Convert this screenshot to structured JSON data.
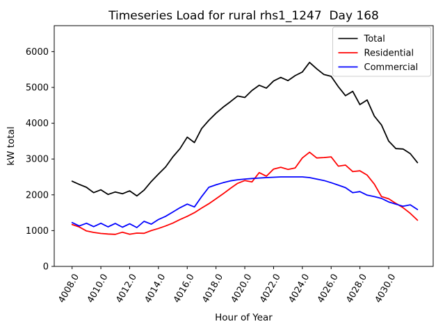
{
  "title": "Timeseries Load for rural rhs1_1247  Day 168",
  "chart_data": {
    "type": "line",
    "title": "Timeseries Load for rural rhs1_1247  Day 168",
    "xlabel": "Hour of Year",
    "ylabel": "kW total",
    "xlim": [
      4006.76,
      4033.09
    ],
    "ylim": [
      0,
      6725
    ],
    "grid": false,
    "xticks": [
      4008,
      4010,
      4012,
      4014,
      4016,
      4018,
      4020,
      4022,
      4024,
      4026,
      4028,
      4030
    ],
    "xtick_labels": [
      "4008.0",
      "4010.0",
      "4012.0",
      "4014.0",
      "4016.0",
      "4018.0",
      "4020.0",
      "4022.0",
      "4024.0",
      "4026.0",
      "4028.0",
      "4030.0"
    ],
    "yticks": [
      0,
      1000,
      2000,
      3000,
      4000,
      5000,
      6000
    ],
    "ytick_labels": [
      "0",
      "1000",
      "2000",
      "3000",
      "4000",
      "5000",
      "6000"
    ],
    "legend": {
      "position": "upper right",
      "entries": [
        {
          "label": "Total",
          "color": "#000000"
        },
        {
          "label": "Residential",
          "color": "#ff0000"
        },
        {
          "label": "Commercial",
          "color": "#0000ff"
        }
      ]
    },
    "x": [
      4008.0,
      4008.5,
      4009.0,
      4009.5,
      4010.0,
      4010.5,
      4011.0,
      4011.5,
      4012.0,
      4012.5,
      4013.0,
      4013.5,
      4014.0,
      4014.5,
      4015.0,
      4015.5,
      4016.0,
      4016.5,
      4017.0,
      4017.5,
      4018.0,
      4018.5,
      4019.0,
      4019.5,
      4020.0,
      4020.5,
      4021.0,
      4021.5,
      4022.0,
      4022.5,
      4023.0,
      4023.5,
      4024.0,
      4024.5,
      4025.0,
      4025.5,
      4026.0,
      4026.5,
      4027.0,
      4027.5,
      4028.0,
      4028.5,
      4029.0,
      4029.5,
      4030.0,
      4030.5,
      4031.0,
      4031.5,
      4032.0
    ],
    "series": [
      {
        "name": "Total",
        "color": "#000000",
        "values": [
          2380,
          2290,
          2210,
          2060,
          2140,
          2010,
          2080,
          2030,
          2110,
          1970,
          2130,
          2370,
          2580,
          2780,
          3060,
          3290,
          3610,
          3460,
          3850,
          4080,
          4280,
          4450,
          4600,
          4760,
          4720,
          4915,
          5060,
          4980,
          5180,
          5280,
          5190,
          5330,
          5430,
          5700,
          5520,
          5360,
          5310,
          5020,
          4770,
          4890,
          4520,
          4650,
          4200,
          3950,
          3500,
          3290,
          3280,
          3150,
          2900
        ]
      },
      {
        "name": "Residential",
        "color": "#ff0000",
        "values": [
          1170,
          1100,
          990,
          950,
          920,
          905,
          895,
          955,
          900,
          930,
          925,
          1000,
          1060,
          1130,
          1210,
          1310,
          1400,
          1500,
          1630,
          1750,
          1890,
          2030,
          2180,
          2320,
          2400,
          2360,
          2620,
          2520,
          2720,
          2770,
          2710,
          2750,
          3030,
          3190,
          3030,
          3040,
          3060,
          2800,
          2830,
          2650,
          2670,
          2550,
          2300,
          1950,
          1890,
          1760,
          1640,
          1480,
          1290
        ]
      },
      {
        "name": "Commercial",
        "color": "#0000ff",
        "values": [
          1225,
          1130,
          1205,
          1110,
          1205,
          1105,
          1200,
          1095,
          1190,
          1085,
          1260,
          1180,
          1310,
          1400,
          1520,
          1640,
          1740,
          1660,
          1950,
          2210,
          2280,
          2340,
          2390,
          2420,
          2440,
          2455,
          2470,
          2480,
          2490,
          2500,
          2500,
          2500,
          2500,
          2480,
          2440,
          2400,
          2340,
          2270,
          2200,
          2060,
          2090,
          1990,
          1950,
          1900,
          1800,
          1740,
          1680,
          1720,
          1590
        ]
      }
    ]
  }
}
